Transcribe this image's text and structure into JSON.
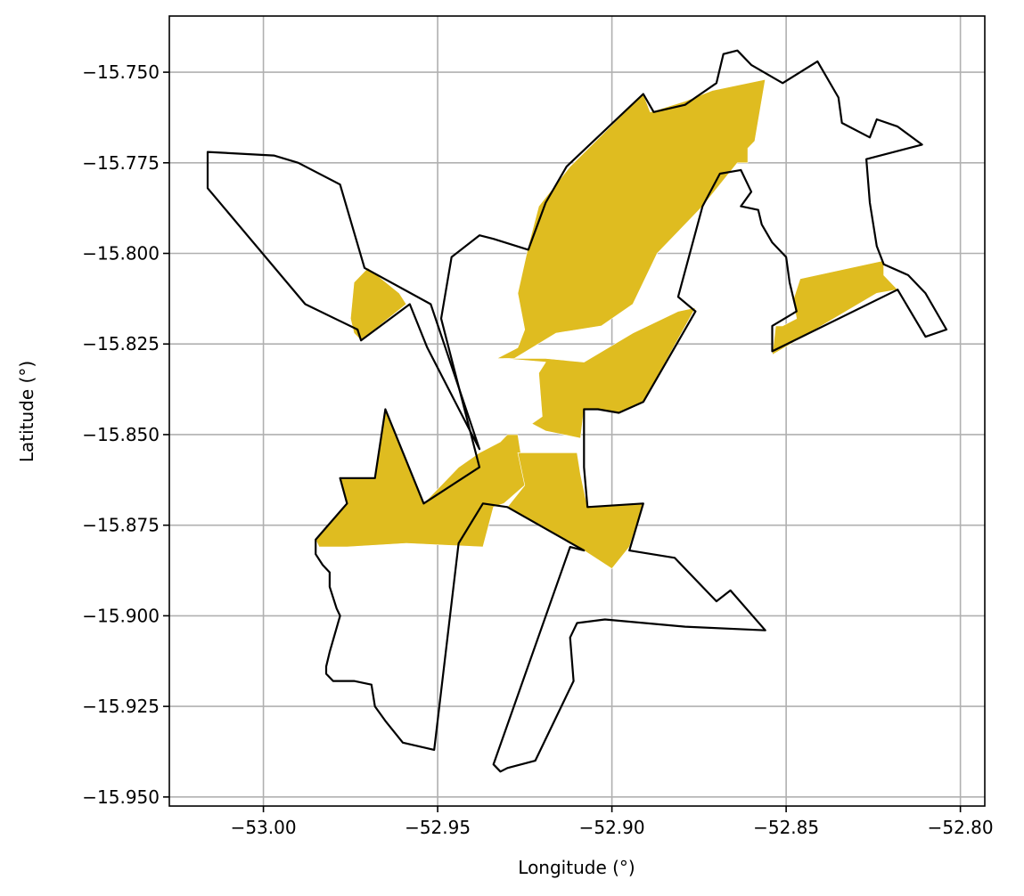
{
  "chart_data": {
    "type": "map",
    "xlabel": "Longitude (°)",
    "ylabel": "Latitude (°)",
    "xlim": [
      -53.027,
      -52.793
    ],
    "ylim": [
      -15.9525,
      -15.7345
    ],
    "xticks": [
      -53.0,
      -52.95,
      -52.9,
      -52.85,
      -52.8
    ],
    "xtick_labels": [
      "−53.00",
      "−52.95",
      "−52.90",
      "−52.85",
      "−52.80"
    ],
    "yticks": [
      -15.75,
      -15.775,
      -15.8,
      -15.825,
      -15.85,
      -15.875,
      -15.9,
      -15.925,
      -15.95
    ],
    "ytick_labels": [
      "−15.750",
      "−15.775",
      "−15.800",
      "−15.825",
      "−15.850",
      "−15.875",
      "−15.900",
      "−15.925",
      "−15.950"
    ],
    "grid": true,
    "colors": {
      "fill": "#dfbc20",
      "outline": "#000000",
      "grid": "#b0b0b0"
    },
    "filled_regions": [
      {
        "name": "north-central",
        "coords": [
          [
            -52.921,
            -15.787
          ],
          [
            -52.912,
            -15.776
          ],
          [
            -52.891,
            -15.756
          ],
          [
            -52.889,
            -15.761
          ],
          [
            -52.879,
            -15.758
          ],
          [
            -52.871,
            -15.755
          ],
          [
            -52.856,
            -15.752
          ],
          [
            -52.859,
            -15.769
          ],
          [
            -52.861,
            -15.771
          ],
          [
            -52.861,
            -15.775
          ],
          [
            -52.864,
            -15.775
          ],
          [
            -52.874,
            -15.787
          ],
          [
            -52.887,
            -15.8
          ],
          [
            -52.894,
            -15.814
          ],
          [
            -52.903,
            -15.82
          ],
          [
            -52.916,
            -15.822
          ],
          [
            -52.928,
            -15.829
          ],
          [
            -52.933,
            -15.829
          ],
          [
            -52.927,
            -15.826
          ],
          [
            -52.925,
            -15.821
          ],
          [
            -52.927,
            -15.811
          ],
          [
            -52.924,
            -15.798
          ]
        ]
      },
      {
        "name": "middle-south",
        "coords": [
          [
            -52.931,
            -15.829
          ],
          [
            -52.919,
            -15.829
          ],
          [
            -52.908,
            -15.83
          ],
          [
            -52.894,
            -15.822
          ],
          [
            -52.881,
            -15.816
          ],
          [
            -52.876,
            -15.815
          ],
          [
            -52.891,
            -15.841
          ],
          [
            -52.898,
            -15.844
          ],
          [
            -52.904,
            -15.843
          ],
          [
            -52.908,
            -15.843
          ],
          [
            -52.909,
            -15.851
          ],
          [
            -52.919,
            -15.849
          ],
          [
            -52.923,
            -15.847
          ],
          [
            -52.92,
            -15.845
          ],
          [
            -52.921,
            -15.833
          ],
          [
            -52.919,
            -15.83
          ]
        ]
      },
      {
        "name": "west-small",
        "coords": [
          [
            -52.97,
            -15.804
          ],
          [
            -52.974,
            -15.808
          ],
          [
            -52.975,
            -15.818
          ],
          [
            -52.974,
            -15.822
          ],
          [
            -52.972,
            -15.824
          ],
          [
            -52.959,
            -15.814
          ],
          [
            -52.961,
            -15.811
          ]
        ]
      },
      {
        "name": "east",
        "coords": [
          [
            -52.822,
            -15.802
          ],
          [
            -52.846,
            -15.807
          ],
          [
            -52.847,
            -15.81
          ],
          [
            -52.848,
            -15.813
          ],
          [
            -52.847,
            -15.818
          ],
          [
            -52.851,
            -15.82
          ],
          [
            -52.853,
            -15.82
          ],
          [
            -52.854,
            -15.828
          ],
          [
            -52.824,
            -15.811
          ],
          [
            -52.818,
            -15.81
          ],
          [
            -52.82,
            -15.808
          ],
          [
            -52.822,
            -15.806
          ]
        ]
      },
      {
        "name": "south-west-star",
        "coords": [
          [
            -52.985,
            -15.879
          ],
          [
            -52.976,
            -15.869
          ],
          [
            -52.978,
            -15.862
          ],
          [
            -52.968,
            -15.862
          ],
          [
            -52.965,
            -15.843
          ],
          [
            -52.954,
            -15.869
          ],
          [
            -52.944,
            -15.859
          ],
          [
            -52.938,
            -15.855
          ],
          [
            -52.932,
            -15.852
          ],
          [
            -52.93,
            -15.85
          ],
          [
            -52.927,
            -15.85
          ],
          [
            -52.926,
            -15.856
          ],
          [
            -52.925,
            -15.864
          ],
          [
            -52.931,
            -15.869
          ],
          [
            -52.934,
            -15.87
          ],
          [
            -52.937,
            -15.881
          ],
          [
            -52.959,
            -15.88
          ],
          [
            -52.976,
            -15.881
          ],
          [
            -52.984,
            -15.881
          ]
        ]
      },
      {
        "name": "south-central",
        "coords": [
          [
            -52.927,
            -15.855
          ],
          [
            -52.91,
            -15.855
          ],
          [
            -52.909,
            -15.861
          ],
          [
            -52.907,
            -15.87
          ],
          [
            -52.891,
            -15.869
          ],
          [
            -52.895,
            -15.881
          ],
          [
            -52.9,
            -15.887
          ],
          [
            -52.908,
            -15.882
          ],
          [
            -52.93,
            -15.87
          ],
          [
            -52.925,
            -15.864
          ]
        ]
      }
    ],
    "outlines": [
      {
        "name": "north-polygon",
        "coords": [
          [
            -52.938,
            -15.854
          ],
          [
            -52.952,
            -15.814
          ],
          [
            -52.971,
            -15.804
          ],
          [
            -52.978,
            -15.781
          ],
          [
            -52.99,
            -15.775
          ],
          [
            -52.997,
            -15.773
          ],
          [
            -53.016,
            -15.772
          ],
          [
            -53.016,
            -15.782
          ],
          [
            -52.988,
            -15.814
          ],
          [
            -52.973,
            -15.821
          ],
          [
            -52.972,
            -15.824
          ],
          [
            -52.958,
            -15.814
          ],
          [
            -52.953,
            -15.826
          ]
        ]
      },
      {
        "name": "center-polygon",
        "coords": [
          [
            -52.949,
            -15.818
          ],
          [
            -52.946,
            -15.801
          ],
          [
            -52.938,
            -15.795
          ],
          [
            -52.934,
            -15.796
          ],
          [
            -52.924,
            -15.799
          ],
          [
            -52.919,
            -15.786
          ],
          [
            -52.913,
            -15.776
          ],
          [
            -52.891,
            -15.756
          ],
          [
            -52.888,
            -15.761
          ],
          [
            -52.879,
            -15.759
          ],
          [
            -52.876,
            -15.757
          ],
          [
            -52.87,
            -15.753
          ],
          [
            -52.868,
            -15.745
          ],
          [
            -52.864,
            -15.744
          ],
          [
            -52.86,
            -15.748
          ],
          [
            -52.851,
            -15.753
          ],
          [
            -52.841,
            -15.747
          ],
          [
            -52.835,
            -15.757
          ],
          [
            -52.834,
            -15.764
          ],
          [
            -52.826,
            -15.768
          ],
          [
            -52.824,
            -15.763
          ],
          [
            -52.818,
            -15.765
          ],
          [
            -52.811,
            -15.77
          ],
          [
            -52.827,
            -15.774
          ],
          [
            -52.826,
            -15.786
          ],
          [
            -52.824,
            -15.798
          ],
          [
            -52.822,
            -15.803
          ],
          [
            -52.815,
            -15.806
          ],
          [
            -52.81,
            -15.811
          ],
          [
            -52.804,
            -15.821
          ],
          [
            -52.81,
            -15.823
          ],
          [
            -52.818,
            -15.81
          ],
          [
            -52.854,
            -15.827
          ],
          [
            -52.854,
            -15.82
          ],
          [
            -52.847,
            -15.816
          ],
          [
            -52.849,
            -15.808
          ],
          [
            -52.85,
            -15.801
          ],
          [
            -52.854,
            -15.797
          ],
          [
            -52.857,
            -15.792
          ],
          [
            -52.858,
            -15.788
          ],
          [
            -52.863,
            -15.787
          ],
          [
            -52.86,
            -15.783
          ],
          [
            -52.863,
            -15.777
          ],
          [
            -52.869,
            -15.778
          ],
          [
            -52.874,
            -15.787
          ],
          [
            -52.881,
            -15.812
          ],
          [
            -52.876,
            -15.816
          ],
          [
            -52.891,
            -15.841
          ],
          [
            -52.898,
            -15.844
          ],
          [
            -52.904,
            -15.843
          ],
          [
            -52.908,
            -15.843
          ],
          [
            -52.908,
            -15.859
          ],
          [
            -52.907,
            -15.87
          ],
          [
            -52.891,
            -15.869
          ],
          [
            -52.895,
            -15.882
          ],
          [
            -52.882,
            -15.884
          ],
          [
            -52.87,
            -15.896
          ],
          [
            -52.866,
            -15.893
          ],
          [
            -52.856,
            -15.904
          ],
          [
            -52.879,
            -15.903
          ],
          [
            -52.902,
            -15.901
          ],
          [
            -52.91,
            -15.902
          ],
          [
            -52.912,
            -15.906
          ],
          [
            -52.911,
            -15.918
          ],
          [
            -52.917,
            -15.93
          ],
          [
            -52.922,
            -15.94
          ],
          [
            -52.93,
            -15.942
          ],
          [
            -52.932,
            -15.943
          ],
          [
            -52.934,
            -15.941
          ],
          [
            -52.912,
            -15.881
          ],
          [
            -52.908,
            -15.882
          ],
          [
            -52.93,
            -15.87
          ],
          [
            -52.937,
            -15.869
          ],
          [
            -52.944,
            -15.88
          ],
          [
            -52.951,
            -15.937
          ],
          [
            -52.96,
            -15.935
          ],
          [
            -52.965,
            -15.929
          ],
          [
            -52.968,
            -15.925
          ],
          [
            -52.969,
            -15.919
          ],
          [
            -52.974,
            -15.918
          ],
          [
            -52.98,
            -15.918
          ],
          [
            -52.982,
            -15.916
          ],
          [
            -52.982,
            -15.914
          ],
          [
            -52.981,
            -15.91
          ],
          [
            -52.978,
            -15.9
          ],
          [
            -52.979,
            -15.898
          ],
          [
            -52.981,
            -15.892
          ],
          [
            -52.981,
            -15.888
          ],
          [
            -52.983,
            -15.886
          ],
          [
            -52.985,
            -15.883
          ],
          [
            -52.985,
            -15.881
          ],
          [
            -52.985,
            -15.879
          ],
          [
            -52.976,
            -15.869
          ],
          [
            -52.978,
            -15.862
          ],
          [
            -52.968,
            -15.862
          ],
          [
            -52.965,
            -15.843
          ],
          [
            -52.954,
            -15.869
          ],
          [
            -52.938,
            -15.859
          ]
        ]
      }
    ]
  }
}
